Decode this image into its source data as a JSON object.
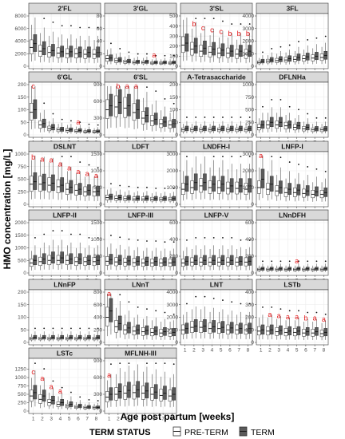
{
  "chart_data": {
    "type": "box",
    "ylabel": "HMO concentration [mg/L]",
    "xlabel": "Age post partum [weeks]",
    "weeks": [
      "1",
      "2",
      "3",
      "4",
      "5",
      "6",
      "7",
      "8"
    ],
    "legend": {
      "title": "TERM STATUS",
      "items": [
        "PRE-TERM",
        "TERM"
      ],
      "position": "bottom"
    },
    "colors": {
      "preterm_fill": "#ffffff",
      "term_fill": "#5a5a5a",
      "strip_bg": "#d9d9d9",
      "panel_border": "#333333",
      "grid": "#ebebeb",
      "annotation": "#e41a1c"
    },
    "grid": true,
    "panels": [
      {
        "name": "2'FL",
        "ylim": [
          0,
          8000
        ],
        "yticks": [
          "0",
          "2000",
          "4000",
          "6000",
          "8000"
        ],
        "preterm": [
          3000,
          2400,
          2200,
          2100,
          2000,
          2000,
          1900,
          1900
        ],
        "term": [
          3600,
          2800,
          2500,
          2300,
          2300,
          2200,
          2200,
          2200
        ],
        "letters": {}
      },
      {
        "name": "3'GL",
        "ylim": [
          0,
          80
        ],
        "yticks": [
          "0",
          "20",
          "40",
          "60",
          "80"
        ],
        "preterm": [
          12,
          9,
          7,
          6,
          6,
          5,
          5,
          5
        ],
        "term": [
          13,
          10,
          8,
          7,
          7,
          6,
          6,
          6
        ],
        "letters": {
          "6": "a"
        }
      },
      {
        "name": "3'SL",
        "ylim": [
          0,
          500
        ],
        "yticks": [
          "0",
          "100",
          "200",
          "300",
          "400",
          "500"
        ],
        "preterm": [
          210,
          170,
          150,
          140,
          130,
          130,
          120,
          120
        ],
        "term": [
          230,
          200,
          180,
          170,
          160,
          150,
          150,
          150
        ],
        "letters": {
          "2": "b",
          "3": "c",
          "4": "c",
          "5": "c",
          "6": "b",
          "7": "b",
          "8": "b"
        }
      },
      {
        "name": "3FL",
        "ylim": [
          0,
          4000
        ],
        "yticks": [
          "0",
          "1000",
          "2000",
          "3000",
          "4000"
        ],
        "preterm": [
          300,
          400,
          450,
          500,
          550,
          600,
          650,
          700
        ],
        "term": [
          400,
          500,
          550,
          600,
          700,
          750,
          800,
          850
        ],
        "letters": {}
      },
      {
        "name": "6'GL",
        "ylim": [
          0,
          200
        ],
        "yticks": [
          "0",
          "50",
          "100",
          "150",
          "200"
        ],
        "preterm": [
          90,
          40,
          25,
          20,
          18,
          15,
          12,
          12
        ],
        "term": [
          100,
          45,
          30,
          22,
          20,
          18,
          15,
          14
        ],
        "letters": {
          "1": "c",
          "6": "a"
        }
      },
      {
        "name": "6'SL",
        "ylim": [
          0,
          900
        ],
        "yticks": [
          "0",
          "300",
          "600",
          "900"
        ],
        "preterm": [
          450,
          500,
          480,
          400,
          300,
          250,
          200,
          180
        ],
        "term": [
          520,
          580,
          520,
          450,
          350,
          280,
          230,
          200
        ],
        "letters": {
          "2": "b",
          "3": "a",
          "4": "a"
        }
      },
      {
        "name": "A-Tetrasaccharide",
        "ylim": [
          0,
          200
        ],
        "yticks": [
          "0",
          "50",
          "100",
          "150",
          "200"
        ],
        "preterm": [
          20,
          20,
          20,
          20,
          20,
          20,
          20,
          20
        ],
        "term": [
          25,
          25,
          25,
          25,
          25,
          25,
          25,
          25
        ],
        "letters": {}
      },
      {
        "name": "DFLNHa",
        "ylim": [
          0,
          1000
        ],
        "yticks": [
          "0",
          "250",
          "500",
          "750",
          "1000"
        ],
        "preterm": [
          150,
          200,
          200,
          180,
          150,
          120,
          100,
          100
        ],
        "term": [
          200,
          250,
          250,
          200,
          180,
          150,
          120,
          120
        ],
        "letters": {}
      },
      {
        "name": "DSLNT",
        "ylim": [
          0,
          1000
        ],
        "yticks": [
          "0",
          "250",
          "500",
          "750",
          "1000"
        ],
        "preterm": [
          400,
          400,
          380,
          350,
          300,
          280,
          250,
          250
        ],
        "term": [
          450,
          430,
          420,
          380,
          340,
          300,
          280,
          260
        ],
        "letters": {
          "1": "b",
          "2": "a",
          "3": "a",
          "4": "a",
          "5": "a",
          "6": "a",
          "7": "a",
          "8": "a"
        }
      },
      {
        "name": "LDFT",
        "ylim": [
          0,
          1500
        ],
        "yticks": [
          "0",
          "500",
          "1000",
          "1500"
        ],
        "preterm": [
          200,
          180,
          170,
          160,
          160,
          150,
          150,
          150
        ],
        "term": [
          220,
          200,
          190,
          180,
          180,
          170,
          170,
          170
        ],
        "letters": {}
      },
      {
        "name": "LNDFH-I",
        "ylim": [
          0,
          3000
        ],
        "yticks": [
          "0",
          "1000",
          "2000",
          "3000"
        ],
        "preterm": [
          900,
          1000,
          1100,
          1000,
          1000,
          950,
          950,
          900
        ],
        "term": [
          1200,
          1300,
          1300,
          1200,
          1200,
          1100,
          1100,
          1100
        ],
        "letters": {}
      },
      {
        "name": "LNFP-I",
        "ylim": [
          0,
          3000
        ],
        "yticks": [
          "0",
          "1000",
          "2000",
          "3000"
        ],
        "preterm": [
          1000,
          900,
          800,
          700,
          700,
          650,
          600,
          600
        ],
        "term": [
          1500,
          1200,
          1000,
          900,
          850,
          800,
          750,
          700
        ],
        "letters": {
          "1": "a"
        }
      },
      {
        "name": "LNFP-II",
        "ylim": [
          0,
          2000
        ],
        "yticks": [
          "0",
          "500",
          "1000",
          "1500",
          "2000"
        ],
        "preterm": [
          400,
          450,
          500,
          500,
          500,
          450,
          450,
          450
        ],
        "term": [
          500,
          550,
          600,
          600,
          550,
          550,
          500,
          500
        ],
        "letters": {}
      },
      {
        "name": "LNFP-III",
        "ylim": [
          0,
          1500
        ],
        "yticks": [
          "0",
          "500",
          "1000",
          "1500"
        ],
        "preterm": [
          350,
          330,
          320,
          310,
          300,
          300,
          300,
          300
        ],
        "term": [
          400,
          380,
          360,
          350,
          340,
          340,
          330,
          330
        ],
        "letters": {}
      },
      {
        "name": "LNFP-V",
        "ylim": [
          0,
          600
        ],
        "yticks": [
          "0",
          "200",
          "400",
          "600"
        ],
        "preterm": [
          120,
          130,
          130,
          130,
          130,
          130,
          130,
          130
        ],
        "term": [
          140,
          150,
          150,
          150,
          150,
          150,
          140,
          140
        ],
        "letters": {}
      },
      {
        "name": "LNnDFH",
        "ylim": [
          0,
          600
        ],
        "yticks": [
          "0",
          "200",
          "400",
          "600"
        ],
        "preterm": [
          40,
          40,
          40,
          40,
          40,
          40,
          40,
          40
        ],
        "term": [
          50,
          50,
          50,
          50,
          50,
          50,
          50,
          50
        ],
        "letters": {
          "5": "a"
        }
      },
      {
        "name": "LNnFP",
        "ylim": [
          0,
          200
        ],
        "yticks": [
          "0",
          "50",
          "100",
          "150",
          "200"
        ],
        "preterm": [
          15,
          15,
          15,
          15,
          15,
          15,
          15,
          15
        ],
        "term": [
          20,
          20,
          20,
          20,
          20,
          20,
          20,
          20
        ],
        "letters": {}
      },
      {
        "name": "LNnT",
        "ylim": [
          0,
          800
        ],
        "yticks": [
          "0",
          "200",
          "400",
          "600",
          "800"
        ],
        "preterm": [
          400,
          250,
          200,
          180,
          170,
          160,
          150,
          150
        ],
        "term": [
          500,
          300,
          230,
          200,
          190,
          180,
          170,
          160
        ],
        "letters": {
          "1": "a"
        }
      },
      {
        "name": "LNT",
        "ylim": [
          0,
          4000
        ],
        "yticks": [
          "0",
          "1000",
          "2000",
          "3000",
          "4000"
        ],
        "preterm": [
          1000,
          1200,
          1200,
          1100,
          1100,
          1000,
          1000,
          1000
        ],
        "term": [
          1100,
          1300,
          1300,
          1250,
          1200,
          1150,
          1100,
          1100
        ],
        "letters": {}
      },
      {
        "name": "LSTb",
        "ylim": [
          0,
          400
        ],
        "yticks": [
          "0",
          "100",
          "200",
          "300",
          "400"
        ],
        "preterm": [
          90,
          90,
          85,
          80,
          80,
          75,
          75,
          70
        ],
        "term": [
          100,
          100,
          95,
          90,
          90,
          85,
          85,
          80
        ],
        "letters": {
          "2": "a",
          "3": "a",
          "4": "a",
          "5": "a",
          "6": "b",
          "7": "a",
          "8": "a"
        }
      },
      {
        "name": "LSTc",
        "ylim": [
          0,
          1500
        ],
        "yticks": [
          "0",
          "250",
          "500",
          "750",
          "1000",
          "1250"
        ],
        "preterm": [
          450,
          350,
          250,
          200,
          150,
          120,
          100,
          100
        ],
        "term": [
          550,
          450,
          320,
          250,
          200,
          150,
          120,
          110
        ],
        "letters": {
          "1": "c",
          "2": "a",
          "3": "a",
          "4": "a"
        }
      },
      {
        "name": "MFLNH-III",
        "ylim": [
          0,
          900
        ],
        "yticks": [
          "0",
          "300",
          "600",
          "900"
        ],
        "preterm": [
          250,
          300,
          320,
          330,
          320,
          300,
          280,
          270
        ],
        "term": [
          300,
          350,
          370,
          380,
          360,
          340,
          320,
          300
        ],
        "letters": {
          "1": "a"
        }
      }
    ]
  }
}
